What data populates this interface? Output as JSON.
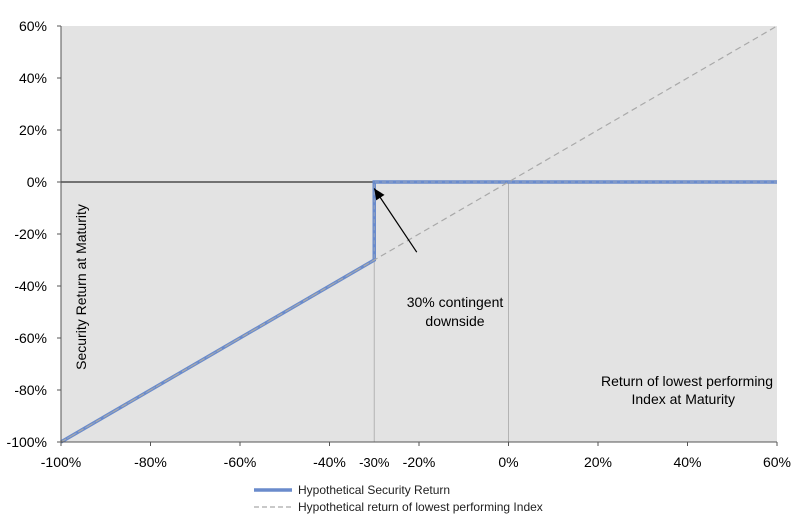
{
  "chart_data": {
    "type": "line",
    "xlabel": "Return of lowest performing Index at Maturity",
    "xlabel_lines": [
      "Return of lowest performing",
      "Index at Maturity"
    ],
    "ylabel": "Security Return at Maturity",
    "xlim": [
      -100,
      60
    ],
    "ylim": [
      -100,
      60
    ],
    "x_ticks": [
      -100,
      -80,
      -60,
      -40,
      -20,
      0,
      20,
      40,
      60
    ],
    "y_ticks": [
      -100,
      -80,
      -60,
      -40,
      -20,
      0,
      20,
      40,
      60
    ],
    "x_tick_labels": [
      "-100%",
      "-80%",
      "-60%",
      "-40%",
      "-20%",
      "0%",
      "20%",
      "40%",
      "60%"
    ],
    "y_tick_labels": [
      "-100%",
      "-80%",
      "-60%",
      "-40%",
      "-20%",
      "0%",
      "20%",
      "40%",
      "60%"
    ],
    "extra_x_tick": {
      "value": -30,
      "label": "-30%"
    },
    "vertical_reference_lines": [
      -30,
      0
    ],
    "horizontal_reference_lines": [
      0
    ],
    "grid": false,
    "plot_background": "#e3e3e3",
    "legend_position": "bottom",
    "series": [
      {
        "name": "Hypothetical Security Return",
        "style": "solid",
        "color": "#6a8bcc",
        "points": [
          [
            -100,
            -100
          ],
          [
            -30,
            -30
          ],
          [
            -30,
            0
          ],
          [
            60,
            0
          ]
        ]
      },
      {
        "name": "Hypothetical return of lowest performing Index",
        "style": "dashed",
        "color": "#a9a9a9",
        "points": [
          [
            -100,
            -100
          ],
          [
            60,
            60
          ]
        ]
      }
    ],
    "annotations": [
      {
        "text_lines": [
          "30% contingent",
          "downside"
        ],
        "arrow_from": [
          -20.5,
          -27
        ],
        "arrow_to": [
          -30,
          -2.5
        ]
      }
    ]
  }
}
